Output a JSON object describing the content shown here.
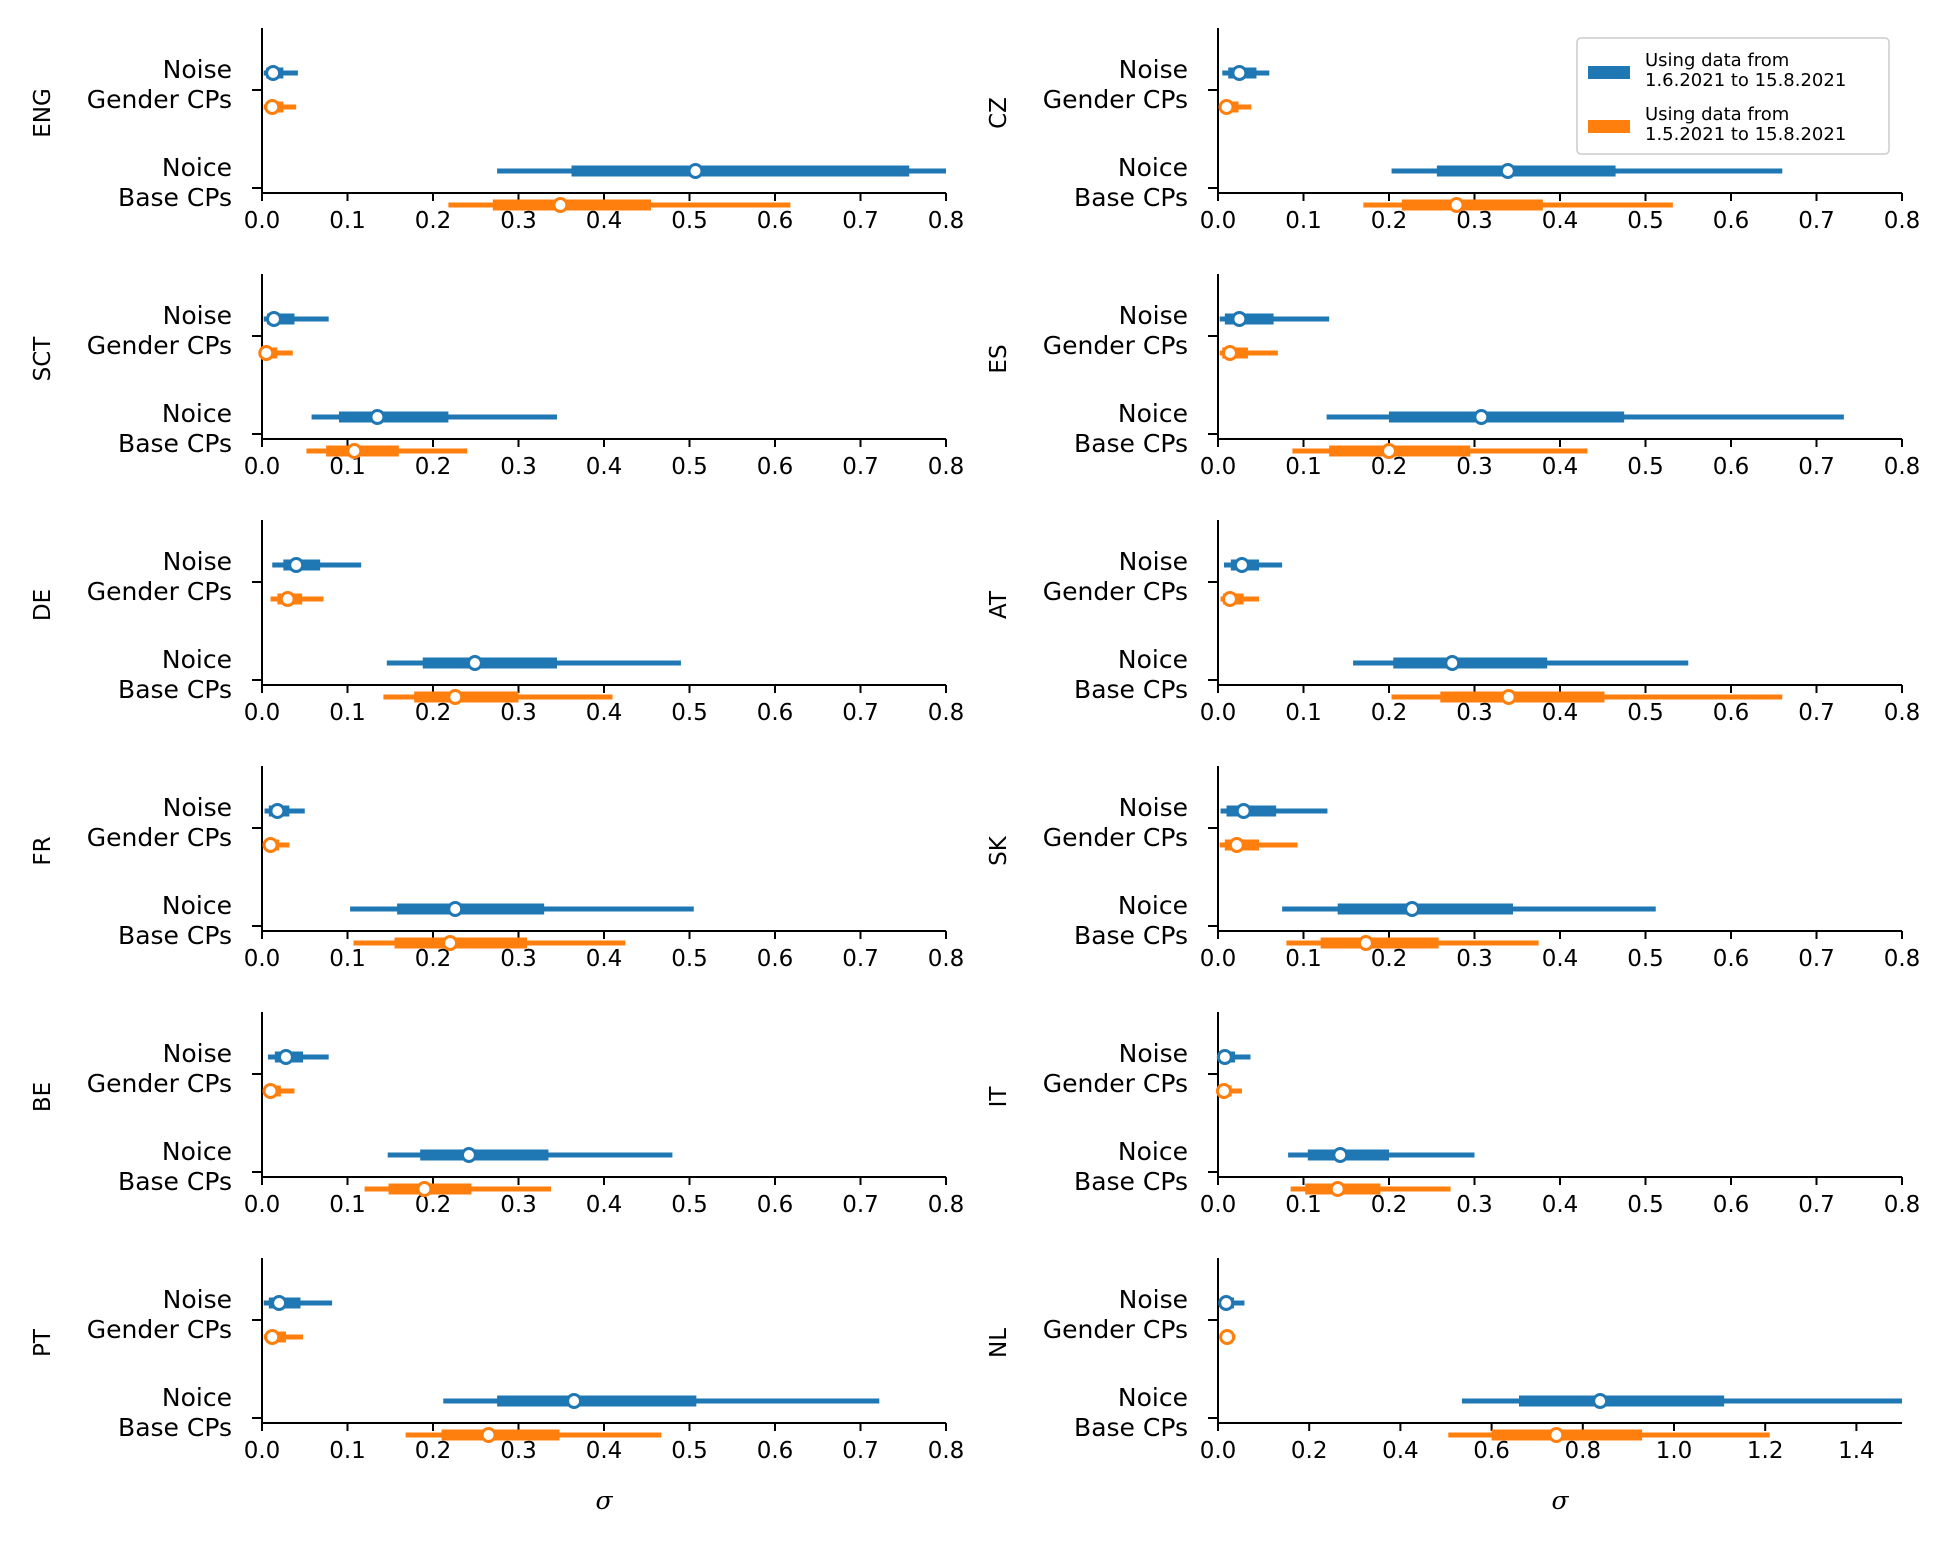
{
  "figure": {
    "colors": {
      "blue": "#1f77b4",
      "orange": "#ff7f0e"
    },
    "legend": {
      "location": "top-right of CZ panel",
      "entries": [
        {
          "line1": "Using data from",
          "line2": "1.6.2021 to 15.8.2021",
          "color": "#1f77b4"
        },
        {
          "line1": "Using data from",
          "line2": "1.5.2021 to 15.8.2021",
          "color": "#ff7f0e"
        }
      ]
    },
    "xlabel": "σ"
  },
  "chart_data": [
    {
      "type": "interval",
      "country": "ENG",
      "ylabels": [
        [
          "Noise",
          "Gender CPs"
        ],
        [
          "Noice",
          "Base CPs"
        ]
      ],
      "xlim": [
        0,
        0.8
      ],
      "xticks": [
        "0.0",
        "0.1",
        "0.2",
        "0.3",
        "0.4",
        "0.5",
        "0.6",
        "0.7",
        "0.8"
      ],
      "xlabel": "",
      "series": [
        {
          "name": "Using data from 1.6.2021 to 15.8.2021",
          "color": "#1f77b4",
          "noise": {
            "median": 0.013,
            "inner": [
              0.005,
              0.025
            ],
            "outer": [
              0.002,
              0.042
            ]
          },
          "base": {
            "median": 0.507,
            "inner": [
              0.362,
              0.757
            ],
            "outer": [
              0.275,
              0.8
            ]
          }
        },
        {
          "name": "Using data from 1.5.2021 to 15.8.2021",
          "color": "#ff7f0e",
          "noise": {
            "median": 0.012,
            "inner": [
              0.005,
              0.025
            ],
            "outer": [
              0.002,
              0.04
            ]
          },
          "base": {
            "median": 0.349,
            "inner": [
              0.27,
              0.455
            ],
            "outer": [
              0.218,
              0.618
            ]
          }
        }
      ]
    },
    {
      "type": "interval",
      "country": "CZ",
      "ylabels": [
        [
          "Noise",
          "Gender CPs"
        ],
        [
          "Noice",
          "Base CPs"
        ]
      ],
      "xlim": [
        0,
        0.8
      ],
      "xticks": [
        "0.0",
        "0.1",
        "0.2",
        "0.3",
        "0.4",
        "0.5",
        "0.6",
        "0.7",
        "0.8"
      ],
      "xlabel": "",
      "series": [
        {
          "name": "Using data from 1.6.2021 to 15.8.2021",
          "color": "#1f77b4",
          "noise": {
            "median": 0.025,
            "inner": [
              0.012,
              0.045
            ],
            "outer": [
              0.005,
              0.06
            ]
          },
          "base": {
            "median": 0.339,
            "inner": [
              0.256,
              0.465
            ],
            "outer": [
              0.203,
              0.66
            ]
          }
        },
        {
          "name": "Using data from 1.5.2021 to 15.8.2021",
          "color": "#ff7f0e",
          "noise": {
            "median": 0.01,
            "inner": [
              0.004,
              0.024
            ],
            "outer": [
              0.001,
              0.039
            ]
          },
          "base": {
            "median": 0.279,
            "inner": [
              0.215,
              0.38
            ],
            "outer": [
              0.17,
              0.532
            ]
          }
        }
      ]
    },
    {
      "type": "interval",
      "country": "SCT",
      "ylabels": [
        [
          "Noise",
          "Gender CPs"
        ],
        [
          "Noice",
          "Base CPs"
        ]
      ],
      "xlim": [
        0,
        0.8
      ],
      "xticks": [
        "0.0",
        "0.1",
        "0.2",
        "0.3",
        "0.4",
        "0.5",
        "0.6",
        "0.7",
        "0.8"
      ],
      "xlabel": "",
      "series": [
        {
          "name": "Using data from 1.6.2021 to 15.8.2021",
          "color": "#1f77b4",
          "noise": {
            "median": 0.014,
            "inner": [
              0.006,
              0.038
            ],
            "outer": [
              0.002,
              0.078
            ]
          },
          "base": {
            "median": 0.135,
            "inner": [
              0.09,
              0.218
            ],
            "outer": [
              0.058,
              0.345
            ]
          }
        },
        {
          "name": "Using data from 1.5.2021 to 15.8.2021",
          "color": "#ff7f0e",
          "noise": {
            "median": 0.005,
            "inner": [
              0.002,
              0.018
            ],
            "outer": [
              0.0,
              0.036
            ]
          },
          "base": {
            "median": 0.108,
            "inner": [
              0.075,
              0.16
            ],
            "outer": [
              0.052,
              0.24
            ]
          }
        }
      ]
    },
    {
      "type": "interval",
      "country": "ES",
      "ylabels": [
        [
          "Noise",
          "Gender CPs"
        ],
        [
          "Noice",
          "Base CPs"
        ]
      ],
      "xlim": [
        0,
        0.8
      ],
      "xticks": [
        "0.0",
        "0.1",
        "0.2",
        "0.3",
        "0.4",
        "0.5",
        "0.6",
        "0.7",
        "0.8"
      ],
      "xlabel": "",
      "series": [
        {
          "name": "Using data from 1.6.2021 to 15.8.2021",
          "color": "#1f77b4",
          "noise": {
            "median": 0.025,
            "inner": [
              0.008,
              0.065
            ],
            "outer": [
              0.002,
              0.13
            ]
          },
          "base": {
            "median": 0.308,
            "inner": [
              0.2,
              0.475
            ],
            "outer": [
              0.127,
              0.732
            ]
          }
        },
        {
          "name": "Using data from 1.5.2021 to 15.8.2021",
          "color": "#ff7f0e",
          "noise": {
            "median": 0.014,
            "inner": [
              0.005,
              0.035
            ],
            "outer": [
              0.002,
              0.07
            ]
          },
          "base": {
            "median": 0.2,
            "inner": [
              0.13,
              0.295
            ],
            "outer": [
              0.087,
              0.432
            ]
          }
        }
      ]
    },
    {
      "type": "interval",
      "country": "DE",
      "ylabels": [
        [
          "Noise",
          "Gender CPs"
        ],
        [
          "Noice",
          "Base CPs"
        ]
      ],
      "xlim": [
        0,
        0.8
      ],
      "xticks": [
        "0.0",
        "0.1",
        "0.2",
        "0.3",
        "0.4",
        "0.5",
        "0.6",
        "0.7",
        "0.8"
      ],
      "xlabel": "",
      "series": [
        {
          "name": "Using data from 1.6.2021 to 15.8.2021",
          "color": "#1f77b4",
          "noise": {
            "median": 0.04,
            "inner": [
              0.025,
              0.068
            ],
            "outer": [
              0.012,
              0.116
            ]
          },
          "base": {
            "median": 0.249,
            "inner": [
              0.188,
              0.345
            ],
            "outer": [
              0.146,
              0.49
            ]
          }
        },
        {
          "name": "Using data from 1.5.2021 to 15.8.2021",
          "color": "#ff7f0e",
          "noise": {
            "median": 0.03,
            "inner": [
              0.018,
              0.047
            ],
            "outer": [
              0.01,
              0.072
            ]
          },
          "base": {
            "median": 0.226,
            "inner": [
              0.178,
              0.3
            ],
            "outer": [
              0.142,
              0.41
            ]
          }
        }
      ]
    },
    {
      "type": "interval",
      "country": "AT",
      "ylabels": [
        [
          "Noise",
          "Gender CPs"
        ],
        [
          "Noice",
          "Base CPs"
        ]
      ],
      "xlim": [
        0,
        0.8
      ],
      "xticks": [
        "0.0",
        "0.1",
        "0.2",
        "0.3",
        "0.4",
        "0.5",
        "0.6",
        "0.7",
        "0.8"
      ],
      "xlabel": "",
      "series": [
        {
          "name": "Using data from 1.6.2021 to 15.8.2021",
          "color": "#1f77b4",
          "noise": {
            "median": 0.028,
            "inner": [
              0.015,
              0.048
            ],
            "outer": [
              0.007,
              0.075
            ]
          },
          "base": {
            "median": 0.274,
            "inner": [
              0.205,
              0.385
            ],
            "outer": [
              0.158,
              0.55
            ]
          }
        },
        {
          "name": "Using data from 1.5.2021 to 15.8.2021",
          "color": "#ff7f0e",
          "noise": {
            "median": 0.014,
            "inner": [
              0.006,
              0.03
            ],
            "outer": [
              0.003,
              0.048
            ]
          },
          "base": {
            "median": 0.34,
            "inner": [
              0.26,
              0.452
            ],
            "outer": [
              0.203,
              0.66
            ]
          }
        }
      ]
    },
    {
      "type": "interval",
      "country": "FR",
      "ylabels": [
        [
          "Noise",
          "Gender CPs"
        ],
        [
          "Noice",
          "Base CPs"
        ]
      ],
      "xlim": [
        0,
        0.8
      ],
      "xticks": [
        "0.0",
        "0.1",
        "0.2",
        "0.3",
        "0.4",
        "0.5",
        "0.6",
        "0.7",
        "0.8"
      ],
      "xlabel": "",
      "series": [
        {
          "name": "Using data from 1.6.2021 to 15.8.2021",
          "color": "#1f77b4",
          "noise": {
            "median": 0.018,
            "inner": [
              0.008,
              0.032
            ],
            "outer": [
              0.003,
              0.05
            ]
          },
          "base": {
            "median": 0.226,
            "inner": [
              0.158,
              0.33
            ],
            "outer": [
              0.103,
              0.505
            ]
          }
        },
        {
          "name": "Using data from 1.5.2021 to 15.8.2021",
          "color": "#ff7f0e",
          "noise": {
            "median": 0.01,
            "inner": [
              0.004,
              0.02
            ],
            "outer": [
              0.001,
              0.032
            ]
          },
          "base": {
            "median": 0.22,
            "inner": [
              0.155,
              0.31
            ],
            "outer": [
              0.107,
              0.425
            ]
          }
        }
      ]
    },
    {
      "type": "interval",
      "country": "SK",
      "ylabels": [
        [
          "Noise",
          "Gender CPs"
        ],
        [
          "Noice",
          "Base CPs"
        ]
      ],
      "xlim": [
        0,
        0.8
      ],
      "xticks": [
        "0.0",
        "0.1",
        "0.2",
        "0.3",
        "0.4",
        "0.5",
        "0.6",
        "0.7",
        "0.8"
      ],
      "xlabel": "",
      "series": [
        {
          "name": "Using data from 1.6.2021 to 15.8.2021",
          "color": "#1f77b4",
          "noise": {
            "median": 0.03,
            "inner": [
              0.01,
              0.068
            ],
            "outer": [
              0.003,
              0.128
            ]
          },
          "base": {
            "median": 0.227,
            "inner": [
              0.14,
              0.345
            ],
            "outer": [
              0.075,
              0.512
            ]
          }
        },
        {
          "name": "Using data from 1.5.2021 to 15.8.2021",
          "color": "#ff7f0e",
          "noise": {
            "median": 0.022,
            "inner": [
              0.008,
              0.048
            ],
            "outer": [
              0.002,
              0.093
            ]
          },
          "base": {
            "median": 0.173,
            "inner": [
              0.12,
              0.258
            ],
            "outer": [
              0.08,
              0.375
            ]
          }
        }
      ]
    },
    {
      "type": "interval",
      "country": "BE",
      "ylabels": [
        [
          "Noise",
          "Gender CPs"
        ],
        [
          "Noice",
          "Base CPs"
        ]
      ],
      "xlim": [
        0,
        0.8
      ],
      "xticks": [
        "0.0",
        "0.1",
        "0.2",
        "0.3",
        "0.4",
        "0.5",
        "0.6",
        "0.7",
        "0.8"
      ],
      "xlabel": "",
      "series": [
        {
          "name": "Using data from 1.6.2021 to 15.8.2021",
          "color": "#1f77b4",
          "noise": {
            "median": 0.028,
            "inner": [
              0.015,
              0.048
            ],
            "outer": [
              0.007,
              0.078
            ]
          },
          "base": {
            "median": 0.242,
            "inner": [
              0.185,
              0.335
            ],
            "outer": [
              0.147,
              0.48
            ]
          }
        },
        {
          "name": "Using data from 1.5.2021 to 15.8.2021",
          "color": "#ff7f0e",
          "noise": {
            "median": 0.01,
            "inner": [
              0.004,
              0.022
            ],
            "outer": [
              0.001,
              0.038
            ]
          },
          "base": {
            "median": 0.19,
            "inner": [
              0.148,
              0.245
            ],
            "outer": [
              0.12,
              0.338
            ]
          }
        }
      ]
    },
    {
      "type": "interval",
      "country": "IT",
      "ylabels": [
        [
          "Noise",
          "Gender CPs"
        ],
        [
          "Noice",
          "Base CPs"
        ]
      ],
      "xlim": [
        0,
        0.8
      ],
      "xticks": [
        "0.0",
        "0.1",
        "0.2",
        "0.3",
        "0.4",
        "0.5",
        "0.6",
        "0.7",
        "0.8"
      ],
      "xlabel": "",
      "series": [
        {
          "name": "Using data from 1.6.2021 to 15.8.2021",
          "color": "#1f77b4",
          "noise": {
            "median": 0.008,
            "inner": [
              0.003,
              0.02
            ],
            "outer": [
              0.001,
              0.038
            ]
          },
          "base": {
            "median": 0.143,
            "inner": [
              0.105,
              0.2
            ],
            "outer": [
              0.082,
              0.3
            ]
          }
        },
        {
          "name": "Using data from 1.5.2021 to 15.8.2021",
          "color": "#ff7f0e",
          "noise": {
            "median": 0.007,
            "inner": [
              0.003,
              0.016
            ],
            "outer": [
              0.001,
              0.028
            ]
          },
          "base": {
            "median": 0.14,
            "inner": [
              0.102,
              0.19
            ],
            "outer": [
              0.085,
              0.272
            ]
          }
        }
      ]
    },
    {
      "type": "interval",
      "country": "PT",
      "ylabels": [
        [
          "Noise",
          "Gender CPs"
        ],
        [
          "Noice",
          "Base CPs"
        ]
      ],
      "xlim": [
        0,
        0.8
      ],
      "xticks": [
        "0.0",
        "0.1",
        "0.2",
        "0.3",
        "0.4",
        "0.5",
        "0.6",
        "0.7",
        "0.8"
      ],
      "xlabel": "σ",
      "series": [
        {
          "name": "Using data from 1.6.2021 to 15.8.2021",
          "color": "#1f77b4",
          "noise": {
            "median": 0.02,
            "inner": [
              0.008,
              0.045
            ],
            "outer": [
              0.002,
              0.082
            ]
          },
          "base": {
            "median": 0.365,
            "inner": [
              0.275,
              0.508
            ],
            "outer": [
              0.212,
              0.722
            ]
          }
        },
        {
          "name": "Using data from 1.5.2021 to 15.8.2021",
          "color": "#ff7f0e",
          "noise": {
            "median": 0.012,
            "inner": [
              0.005,
              0.028
            ],
            "outer": [
              0.002,
              0.048
            ]
          },
          "base": {
            "median": 0.265,
            "inner": [
              0.21,
              0.348
            ],
            "outer": [
              0.168,
              0.467
            ]
          }
        }
      ]
    },
    {
      "type": "interval",
      "country": "NL",
      "ylabels": [
        [
          "Noise",
          "Gender CPs"
        ],
        [
          "Noice",
          "Base CPs"
        ]
      ],
      "xlim": [
        0,
        1.5
      ],
      "xticks": [
        "0.0",
        "0.2",
        "0.4",
        "0.6",
        "0.8",
        "1.0",
        "1.2",
        "1.4"
      ],
      "xlabel": "σ",
      "series": [
        {
          "name": "Using data from 1.6.2021 to 15.8.2021",
          "color": "#1f77b4",
          "noise": {
            "median": 0.018,
            "inner": [
              0.008,
              0.035
            ],
            "outer": [
              0.003,
              0.058
            ]
          },
          "base": {
            "median": 0.838,
            "inner": [
              0.66,
              1.11
            ],
            "outer": [
              0.535,
              1.5
            ]
          }
        },
        {
          "name": "Using data from 1.5.2021 to 15.8.2021",
          "color": "#ff7f0e",
          "noise": {
            "median": 0.02,
            "inner": [
              0.01,
              0.03
            ],
            "outer": [
              0.005,
              0.038
            ]
          },
          "base": {
            "median": 0.742,
            "inner": [
              0.6,
              0.93
            ],
            "outer": [
              0.505,
              1.21
            ]
          }
        }
      ]
    }
  ]
}
